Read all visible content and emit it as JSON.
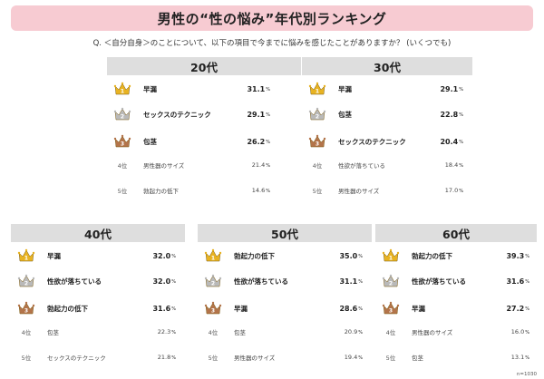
{
  "title": "男性の“性の悩み”年代別ランキング",
  "question": "Q. ＜自分自身＞のことについて、以下の項目で今までに悩みを感じたことがありますか？ (いくつでも)",
  "footnote": "n=1030",
  "colors": {
    "title_bg": "#f7cbd2",
    "header_bg": "#dedede",
    "gold": "#e8b322",
    "silver": "#b9b9b9",
    "bronze": "#b3744a"
  },
  "rank_labels": [
    "1",
    "2",
    "3",
    "4位",
    "5位"
  ],
  "percent_unit": "%",
  "chart_data": [
    {
      "type": "table",
      "title": "20代",
      "categories": [
        "早漏",
        "セックスのテクニック",
        "包茎",
        "男性器のサイズ",
        "勃起力の低下"
      ],
      "values": [
        "31.1",
        "29.1",
        "26.2",
        "21.4",
        "14.6"
      ]
    },
    {
      "type": "table",
      "title": "30代",
      "categories": [
        "早漏",
        "包茎",
        "セックスのテクニック",
        "性欲が落ちている",
        "男性器のサイズ"
      ],
      "values": [
        "29.1",
        "22.8",
        "20.4",
        "18.4",
        "17.0"
      ]
    },
    {
      "type": "table",
      "title": "40代",
      "categories": [
        "早漏",
        "性欲が落ちている",
        "勃起力の低下",
        "包茎",
        "セックスのテクニック"
      ],
      "values": [
        "32.0",
        "32.0",
        "31.6",
        "22.3",
        "21.8"
      ]
    },
    {
      "type": "table",
      "title": "50代",
      "categories": [
        "勃起力の低下",
        "性欲が落ちている",
        "早漏",
        "包茎",
        "男性器のサイズ"
      ],
      "values": [
        "35.0",
        "31.1",
        "28.6",
        "20.9",
        "19.4"
      ]
    },
    {
      "type": "table",
      "title": "60代",
      "categories": [
        "勃起力の低下",
        "性欲が落ちている",
        "早漏",
        "男性器のサイズ",
        "包茎"
      ],
      "values": [
        "39.3",
        "31.6",
        "27.2",
        "16.0",
        "13.1"
      ]
    }
  ]
}
